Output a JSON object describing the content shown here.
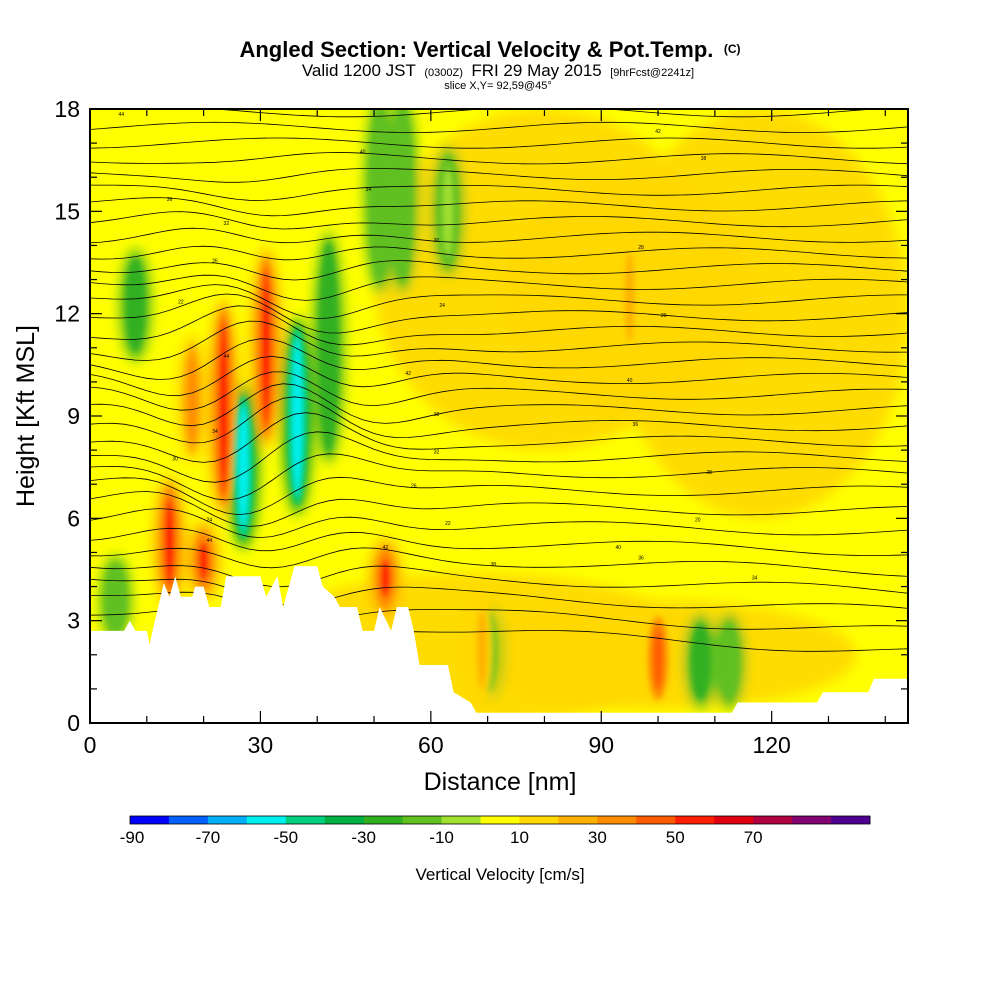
{
  "title": {
    "main": "Angled Section: Vertical Velocity & Pot.Temp.",
    "main_suffix": "(C)",
    "valid_prefix": "Valid 1200 JST",
    "valid_utc": "(0300Z)",
    "valid_date": "FRI 29 May 2015",
    "fcst": "[9hrFcst@2241z]",
    "slice": "slice X,Y= 92,59@45°"
  },
  "chart_data": {
    "type": "heatmap",
    "title": "Angled Section: Vertical Velocity & Pot.Temp.",
    "xlabel": "Distance [nm]",
    "ylabel": "Height [Kft MSL]",
    "xlim": [
      0,
      144
    ],
    "ylim": [
      0,
      18
    ],
    "x_ticks": [
      "0",
      "30",
      "60",
      "90",
      "120"
    ],
    "y_ticks": [
      "0",
      "3",
      "6",
      "9",
      "12",
      "15",
      "18"
    ],
    "colorbar": {
      "label": "Vertical Velocity [cm/s]",
      "tick_labels": [
        "-90",
        "-70",
        "-50",
        "-30",
        "-10",
        "10",
        "30",
        "50",
        "70"
      ],
      "colors": [
        "#0000ff",
        "#0060ff",
        "#00b0ff",
        "#00f0f0",
        "#00d080",
        "#00b040",
        "#30b020",
        "#60c020",
        "#a0e030",
        "#ffff00",
        "#ffd800",
        "#ffb000",
        "#ff8c00",
        "#ff5a00",
        "#ff1e00",
        "#e00010",
        "#b00040",
        "#800070",
        "#500090"
      ]
    },
    "updrafts": [
      {
        "x": 23.5,
        "y_min": 6.5,
        "y_max": 12.0,
        "value": 50
      },
      {
        "x": 31.0,
        "y_min": 8.5,
        "y_max": 13.5,
        "value": 50
      },
      {
        "x": 14.0,
        "y_min": 3.8,
        "y_max": 6.8,
        "value": 50
      },
      {
        "x": 18.0,
        "y_min": 8.0,
        "y_max": 11.0,
        "value": 30
      },
      {
        "x": 52.0,
        "y_min": 3.5,
        "y_max": 5.0,
        "value": 50
      },
      {
        "x": 20.0,
        "y_min": 4.0,
        "y_max": 5.5,
        "value": 50
      },
      {
        "x": 95.0,
        "y_min": 11.0,
        "y_max": 14.0,
        "value": 20
      },
      {
        "x": 100.0,
        "y_min": 0.8,
        "y_max": 3.0,
        "value": 40
      },
      {
        "x": 69.0,
        "y_min": 0.8,
        "y_max": 3.5,
        "value": 20
      }
    ],
    "downdrafts": [
      {
        "x": 27.0,
        "y_min": 5.5,
        "y_max": 9.5,
        "value": -60
      },
      {
        "x": 36.5,
        "y_min": 6.5,
        "y_max": 11.5,
        "value": -60
      },
      {
        "x": 8.0,
        "y_min": 11.0,
        "y_max": 13.5,
        "value": -30
      },
      {
        "x": 42.0,
        "y_min": 8.0,
        "y_max": 14.0,
        "value": -30
      },
      {
        "x": 51.0,
        "y_min": 13.0,
        "y_max": 18.0,
        "value": -20
      },
      {
        "x": 55.0,
        "y_min": 13.0,
        "y_max": 18.0,
        "value": -20
      },
      {
        "x": 63.0,
        "y_min": 13.5,
        "y_max": 16.5,
        "value": -10
      },
      {
        "x": 107.5,
        "y_min": 0.8,
        "y_max": 2.8,
        "value": -30
      },
      {
        "x": 112.5,
        "y_min": 0.8,
        "y_max": 2.8,
        "value": -20
      },
      {
        "x": 70.0,
        "y_min": 1.0,
        "y_max": 3.2,
        "value": -20
      },
      {
        "x": 4.5,
        "y_min": 2.8,
        "y_max": 4.5,
        "value": -20
      }
    ],
    "contour_labels": [
      "44",
      "42",
      "40",
      "38",
      "36",
      "34",
      "32",
      "30",
      "28",
      "26",
      "24",
      "22",
      "20"
    ]
  }
}
